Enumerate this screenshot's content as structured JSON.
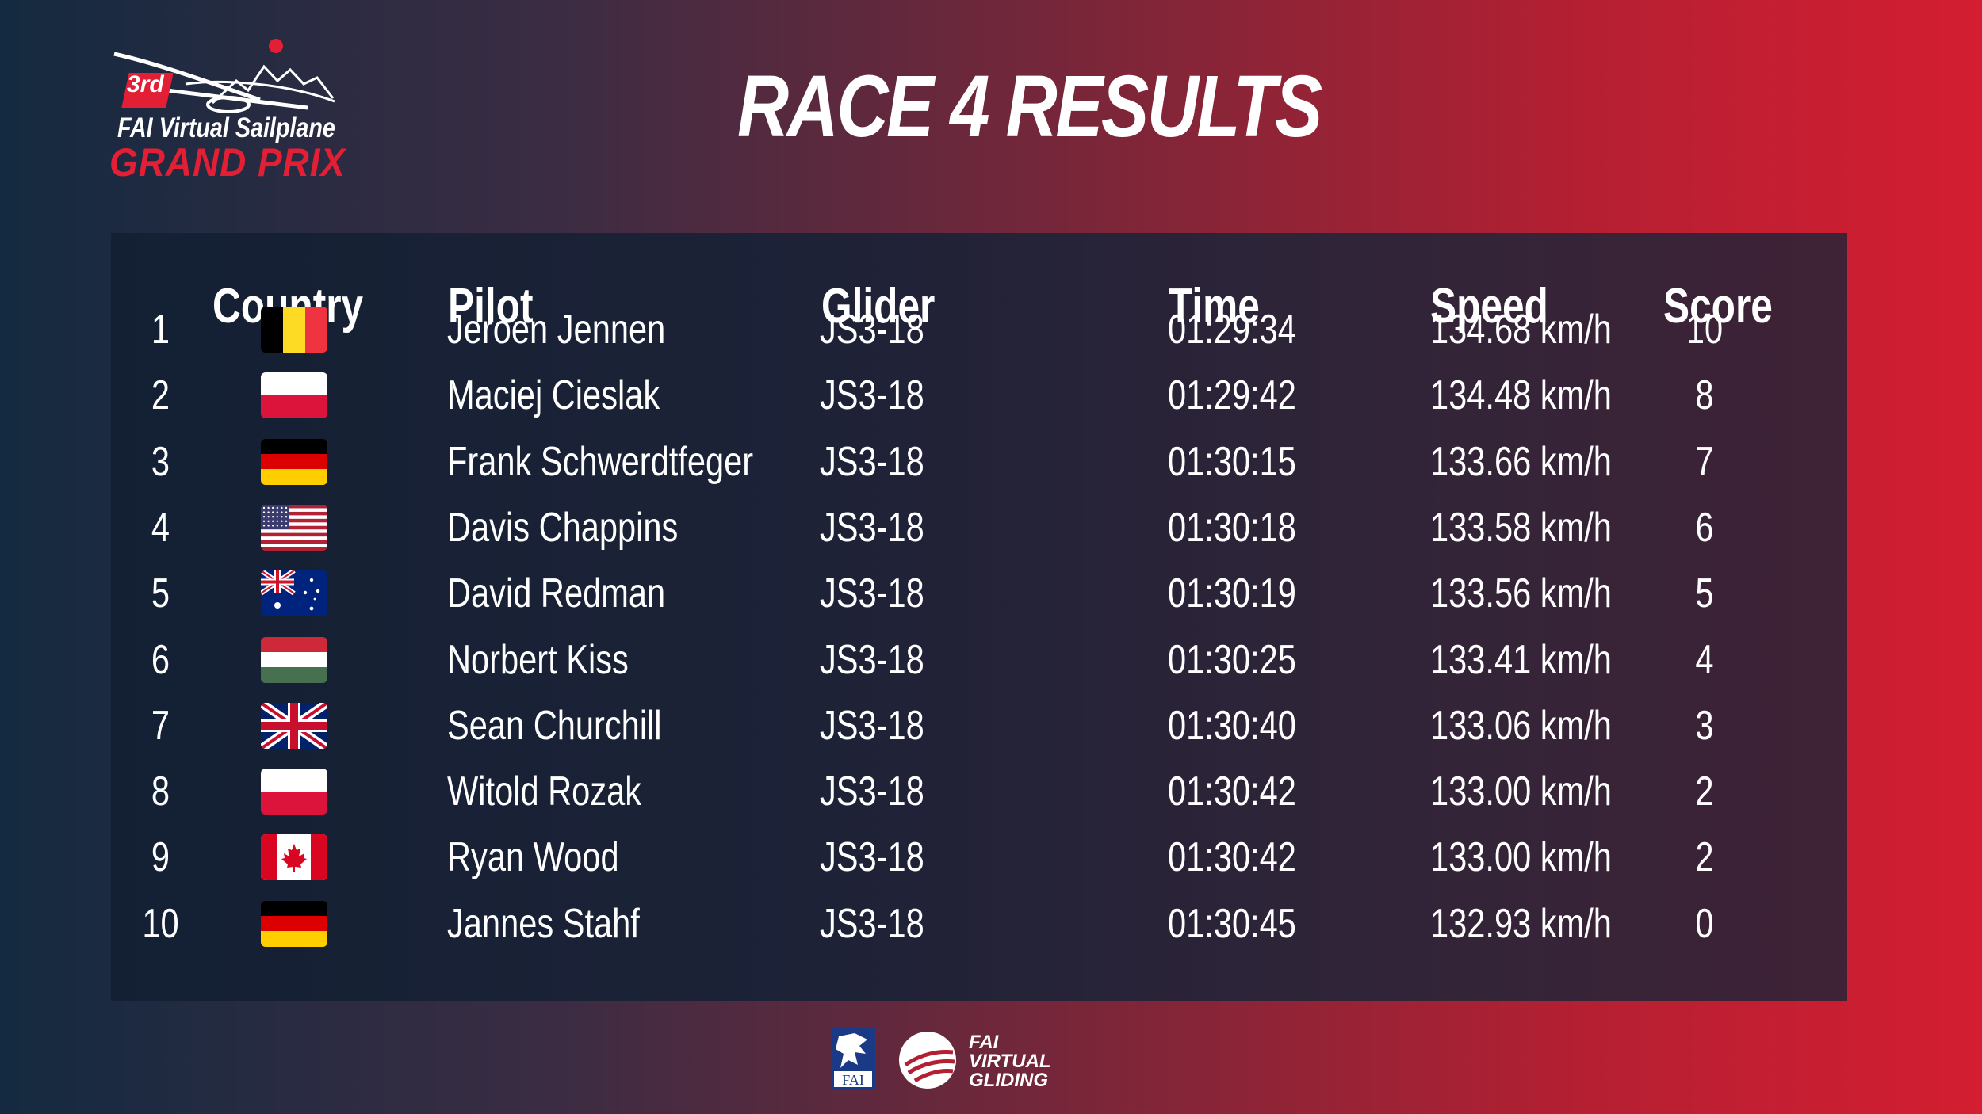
{
  "logo": {
    "edition": "3rd",
    "line1": "FAI Virtual Sailplane",
    "line2": "GRAND PRIX"
  },
  "title": "RACE 4 RESULTS",
  "table": {
    "headers": {
      "country": "Country",
      "pilot": "Pilot",
      "glider": "Glider",
      "time": "Time",
      "speed": "Speed",
      "score": "Score"
    },
    "rows": [
      {
        "rank": "1",
        "flag": "belgium-flag-icon",
        "pilot": "Jeroen Jennen",
        "glider": "JS3-18",
        "time": "01:29:34",
        "speed": "134.68 km/h",
        "score": "10"
      },
      {
        "rank": "2",
        "flag": "poland-flag-icon",
        "pilot": "Maciej Cieslak",
        "glider": "JS3-18",
        "time": "01:29:42",
        "speed": "134.48 km/h",
        "score": "8"
      },
      {
        "rank": "3",
        "flag": "germany-flag-icon",
        "pilot": "Frank Schwerdtfeger",
        "glider": "JS3-18",
        "time": "01:30:15",
        "speed": "133.66 km/h",
        "score": "7"
      },
      {
        "rank": "4",
        "flag": "usa-flag-icon",
        "pilot": "Davis Chappins",
        "glider": "JS3-18",
        "time": "01:30:18",
        "speed": "133.58 km/h",
        "score": "6"
      },
      {
        "rank": "5",
        "flag": "australia-flag-icon",
        "pilot": "David Redman",
        "glider": "JS3-18",
        "time": "01:30:19",
        "speed": "133.56 km/h",
        "score": "5"
      },
      {
        "rank": "6",
        "flag": "hungary-flag-icon",
        "pilot": "Norbert Kiss",
        "glider": "JS3-18",
        "time": "01:30:25",
        "speed": "133.41 km/h",
        "score": "4"
      },
      {
        "rank": "7",
        "flag": "uk-flag-icon",
        "pilot": "Sean Churchill",
        "glider": "JS3-18",
        "time": "01:30:40",
        "speed": "133.06 km/h",
        "score": "3"
      },
      {
        "rank": "8",
        "flag": "poland-flag-icon",
        "pilot": "Witold Rozak",
        "glider": "JS3-18",
        "time": "01:30:42",
        "speed": "133.00 km/h",
        "score": "2"
      },
      {
        "rank": "9",
        "flag": "canada-flag-icon",
        "pilot": "Ryan Wood",
        "glider": "JS3-18",
        "time": "01:30:42",
        "speed": "133.00 km/h",
        "score": "2"
      },
      {
        "rank": "10",
        "flag": "germany-flag-icon",
        "pilot": "Jannes Stahf",
        "glider": "JS3-18",
        "time": "01:30:45",
        "speed": "132.93 km/h",
        "score": "0"
      }
    ]
  },
  "footer": {
    "fai_logo_text": "FAI",
    "vg_line1": "FAI",
    "vg_line2": "VIRTUAL",
    "vg_line3": "GLIDING"
  },
  "colors": {
    "accent_red": "#e21f35",
    "panel_dark": "#1a2236"
  }
}
